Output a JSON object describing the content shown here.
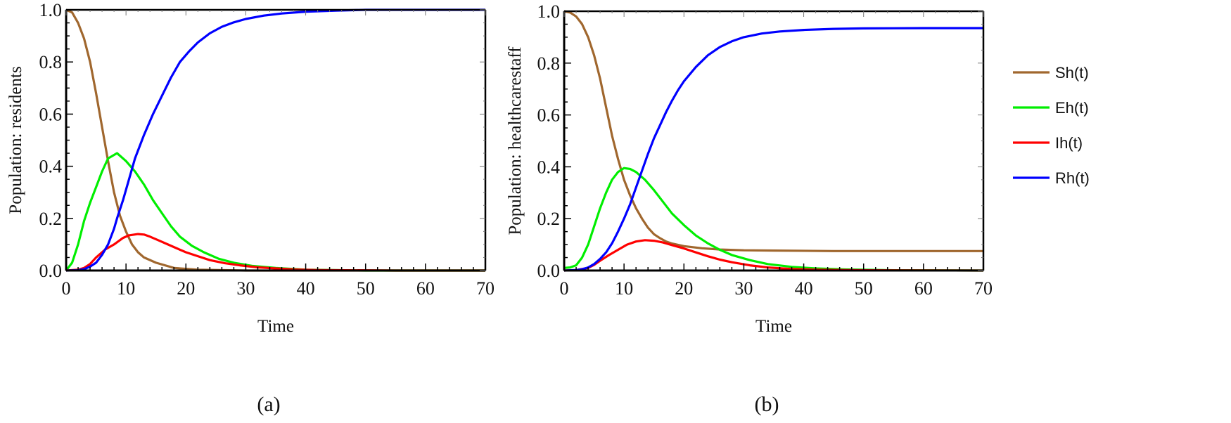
{
  "chart_data": [
    {
      "type": "line",
      "panel_label": "(a)",
      "xlabel": "Time",
      "ylabel": "Population: residents",
      "xlim": [
        0,
        70
      ],
      "ylim": [
        0,
        1
      ],
      "xticks": [
        "0",
        "10",
        "20",
        "30",
        "40",
        "50",
        "60",
        "70"
      ],
      "yticks": [
        "0.0",
        "0.2",
        "0.4",
        "0.6",
        "0.8",
        "1.0"
      ],
      "series": [
        {
          "name": "Sh(t)",
          "color": "#a0672e",
          "points": [
            [
              0,
              1
            ],
            [
              1,
              0.99
            ],
            [
              2,
              0.95
            ],
            [
              3,
              0.89
            ],
            [
              4,
              0.8
            ],
            [
              5,
              0.68
            ],
            [
              6,
              0.55
            ],
            [
              7,
              0.42
            ],
            [
              8,
              0.3
            ],
            [
              9,
              0.21
            ],
            [
              10,
              0.15
            ],
            [
              11,
              0.1
            ],
            [
              12,
              0.07
            ],
            [
              13,
              0.05
            ],
            [
              15,
              0.03
            ],
            [
              18,
              0.01
            ],
            [
              22,
              0.003
            ],
            [
              30,
              0
            ],
            [
              70,
              0
            ]
          ]
        },
        {
          "name": "Eh(t)",
          "color": "#00ee00",
          "points": [
            [
              0,
              0
            ],
            [
              1,
              0.03
            ],
            [
              2,
              0.1
            ],
            [
              3,
              0.19
            ],
            [
              4,
              0.26
            ],
            [
              5,
              0.32
            ],
            [
              6,
              0.38
            ],
            [
              7,
              0.43
            ],
            [
              8.5,
              0.45
            ],
            [
              10,
              0.42
            ],
            [
              11.5,
              0.38
            ],
            [
              13,
              0.33
            ],
            [
              14.5,
              0.27
            ],
            [
              16,
              0.22
            ],
            [
              17.5,
              0.17
            ],
            [
              19,
              0.13
            ],
            [
              21,
              0.095
            ],
            [
              23,
              0.07
            ],
            [
              25.5,
              0.045
            ],
            [
              28,
              0.03
            ],
            [
              31,
              0.018
            ],
            [
              35,
              0.01
            ],
            [
              40,
              0.003
            ],
            [
              50,
              0
            ],
            [
              70,
              0
            ]
          ]
        },
        {
          "name": "Ih(t)",
          "color": "#ff0000",
          "points": [
            [
              0,
              0
            ],
            [
              2,
              0.003
            ],
            [
              3,
              0.01
            ],
            [
              4,
              0.025
            ],
            [
              5,
              0.05
            ],
            [
              6.5,
              0.08
            ],
            [
              8,
              0.1
            ],
            [
              9.5,
              0.125
            ],
            [
              10.5,
              0.135
            ],
            [
              12,
              0.14
            ],
            [
              13,
              0.138
            ],
            [
              14,
              0.13
            ],
            [
              15.5,
              0.115
            ],
            [
              17,
              0.1
            ],
            [
              18.5,
              0.085
            ],
            [
              20,
              0.07
            ],
            [
              22,
              0.055
            ],
            [
              24,
              0.04
            ],
            [
              26.5,
              0.028
            ],
            [
              29,
              0.02
            ],
            [
              32,
              0.012
            ],
            [
              35,
              0.008
            ],
            [
              38,
              0.004
            ],
            [
              42,
              0.002
            ],
            [
              55,
              0
            ],
            [
              70,
              0
            ]
          ]
        },
        {
          "name": "Rh(t)",
          "color": "#0000ff",
          "points": [
            [
              0,
              0
            ],
            [
              2,
              0.001
            ],
            [
              3,
              0.005
            ],
            [
              4,
              0.015
            ],
            [
              5,
              0.03
            ],
            [
              6,
              0.06
            ],
            [
              7,
              0.1
            ],
            [
              8,
              0.16
            ],
            [
              8.5,
              0.2
            ],
            [
              9.5,
              0.27
            ],
            [
              10.5,
              0.35
            ],
            [
              11.5,
              0.43
            ],
            [
              13,
              0.52
            ],
            [
              14.5,
              0.6
            ],
            [
              16,
              0.67
            ],
            [
              17.5,
              0.74
            ],
            [
              19,
              0.8
            ],
            [
              20.5,
              0.84
            ],
            [
              22,
              0.875
            ],
            [
              24,
              0.91
            ],
            [
              26,
              0.935
            ],
            [
              28,
              0.952
            ],
            [
              30,
              0.965
            ],
            [
              33,
              0.978
            ],
            [
              36,
              0.986
            ],
            [
              40,
              0.993
            ],
            [
              45,
              0.997
            ],
            [
              50,
              1
            ],
            [
              70,
              1
            ]
          ]
        }
      ]
    },
    {
      "type": "line",
      "panel_label": "(b)",
      "xlabel": "Time",
      "ylabel": "Population: healthcarestaff",
      "xlim": [
        0,
        70
      ],
      "ylim": [
        0,
        1
      ],
      "xticks": [
        "0",
        "10",
        "20",
        "30",
        "40",
        "50",
        "60",
        "70"
      ],
      "yticks": [
        "0.0",
        "0.2",
        "0.4",
        "0.6",
        "0.8",
        "1.0"
      ],
      "series": [
        {
          "name": "Sh(t)",
          "color": "#a0672e",
          "points": [
            [
              0,
              1
            ],
            [
              1,
              0.995
            ],
            [
              2,
              0.98
            ],
            [
              3,
              0.95
            ],
            [
              4,
              0.9
            ],
            [
              5,
              0.83
            ],
            [
              6,
              0.74
            ],
            [
              7,
              0.63
            ],
            [
              8,
              0.52
            ],
            [
              9,
              0.43
            ],
            [
              10,
              0.35
            ],
            [
              11,
              0.29
            ],
            [
              12,
              0.24
            ],
            [
              13,
              0.2
            ],
            [
              14,
              0.165
            ],
            [
              15,
              0.14
            ],
            [
              16,
              0.125
            ],
            [
              17,
              0.112
            ],
            [
              18,
              0.104
            ],
            [
              20,
              0.094
            ],
            [
              23,
              0.086
            ],
            [
              26,
              0.081
            ],
            [
              30,
              0.078
            ],
            [
              35,
              0.077
            ],
            [
              45,
              0.075
            ],
            [
              70,
              0.075
            ]
          ]
        },
        {
          "name": "Eh(t)",
          "color": "#00ee00",
          "points": [
            [
              0,
              0.01
            ],
            [
              1,
              0.012
            ],
            [
              2,
              0.02
            ],
            [
              3,
              0.05
            ],
            [
              4,
              0.1
            ],
            [
              5,
              0.17
            ],
            [
              6,
              0.24
            ],
            [
              7,
              0.3
            ],
            [
              8,
              0.35
            ],
            [
              9,
              0.38
            ],
            [
              10,
              0.395
            ],
            [
              11,
              0.392
            ],
            [
              12,
              0.38
            ],
            [
              13.5,
              0.35
            ],
            [
              15,
              0.31
            ],
            [
              16.5,
              0.265
            ],
            [
              18,
              0.22
            ],
            [
              20,
              0.175
            ],
            [
              22,
              0.135
            ],
            [
              24,
              0.105
            ],
            [
              26,
              0.08
            ],
            [
              28,
              0.06
            ],
            [
              31,
              0.04
            ],
            [
              34,
              0.025
            ],
            [
              38,
              0.014
            ],
            [
              42,
              0.008
            ],
            [
              47,
              0.004
            ],
            [
              55,
              0.001
            ],
            [
              70,
              0
            ]
          ]
        },
        {
          "name": "Ih(t)",
          "color": "#ff0000",
          "points": [
            [
              0,
              0
            ],
            [
              2,
              0.002
            ],
            [
              4,
              0.01
            ],
            [
              5,
              0.022
            ],
            [
              6,
              0.038
            ],
            [
              7.5,
              0.06
            ],
            [
              9,
              0.08
            ],
            [
              10.5,
              0.1
            ],
            [
              12,
              0.112
            ],
            [
              13.5,
              0.117
            ],
            [
              15,
              0.115
            ],
            [
              16.5,
              0.108
            ],
            [
              18,
              0.098
            ],
            [
              20,
              0.085
            ],
            [
              22,
              0.07
            ],
            [
              24,
              0.055
            ],
            [
              26,
              0.042
            ],
            [
              28,
              0.032
            ],
            [
              31,
              0.02
            ],
            [
              34,
              0.012
            ],
            [
              38,
              0.006
            ],
            [
              42,
              0.003
            ],
            [
              50,
              0.001
            ],
            [
              70,
              0
            ]
          ]
        },
        {
          "name": "Rh(t)",
          "color": "#0000ff",
          "points": [
            [
              0,
              0
            ],
            [
              2,
              0.002
            ],
            [
              3,
              0.005
            ],
            [
              4,
              0.012
            ],
            [
              5,
              0.025
            ],
            [
              6,
              0.045
            ],
            [
              7,
              0.07
            ],
            [
              8,
              0.105
            ],
            [
              9,
              0.15
            ],
            [
              10,
              0.2
            ],
            [
              11,
              0.255
            ],
            [
              12,
              0.32
            ],
            [
              13,
              0.385
            ],
            [
              14,
              0.45
            ],
            [
              15,
              0.51
            ],
            [
              16,
              0.56
            ],
            [
              17,
              0.61
            ],
            [
              18,
              0.655
            ],
            [
              19,
              0.695
            ],
            [
              20,
              0.73
            ],
            [
              22,
              0.785
            ],
            [
              24,
              0.83
            ],
            [
              26,
              0.862
            ],
            [
              28,
              0.884
            ],
            [
              30,
              0.9
            ],
            [
              33,
              0.914
            ],
            [
              36,
              0.922
            ],
            [
              40,
              0.928
            ],
            [
              45,
              0.932
            ],
            [
              50,
              0.934
            ],
            [
              60,
              0.935
            ],
            [
              70,
              0.935
            ]
          ]
        }
      ]
    }
  ],
  "legend": {
    "placement": "right",
    "entries": [
      "Sh(t)",
      "Eh(t)",
      "Ih(t)",
      "Rh(t)"
    ]
  }
}
